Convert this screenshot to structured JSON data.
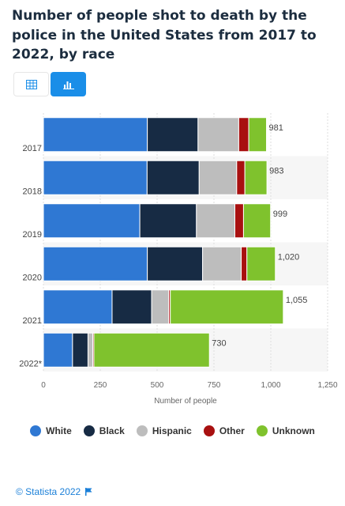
{
  "title": "Number of people shot to death by the police in the United States from 2017 to 2022, by race",
  "toolbar": {
    "table_icon": "table-icon",
    "chart_icon": "bar-chart-icon"
  },
  "footer": {
    "credit": "© Statista 2022",
    "flag_icon": "flag-icon"
  },
  "chart_data": {
    "type": "bar",
    "orientation": "horizontal",
    "stacked": true,
    "categories": [
      "2017",
      "2018",
      "2019",
      "2020",
      "2021",
      "2022*"
    ],
    "series": [
      {
        "name": "White",
        "color": "#2f78d3",
        "values": [
          457,
          456,
          424,
          457,
          302,
          128
        ]
      },
      {
        "name": "Black",
        "color": "#172b44",
        "values": [
          223,
          229,
          249,
          243,
          174,
          68
        ]
      },
      {
        "name": "Hispanic",
        "color": "#bdbdbd",
        "values": [
          179,
          165,
          169,
          170,
          75,
          21
        ]
      },
      {
        "name": "Other",
        "color": "#a81010",
        "values": [
          44,
          36,
          38,
          25,
          7,
          5
        ]
      },
      {
        "name": "Unknown",
        "color": "#7fc22d",
        "values": [
          78,
          97,
          119,
          125,
          497,
          508
        ]
      }
    ],
    "totals": [
      "981",
      "983",
      "999",
      "1,020",
      "1,055",
      "730"
    ],
    "xlabel": "Number of people",
    "ylabel": "",
    "xlim": [
      0,
      1250
    ],
    "xticks": [
      "0",
      "250",
      "500",
      "750",
      "1,000",
      "1,250"
    ],
    "legend_position": "bottom",
    "grid": true
  }
}
